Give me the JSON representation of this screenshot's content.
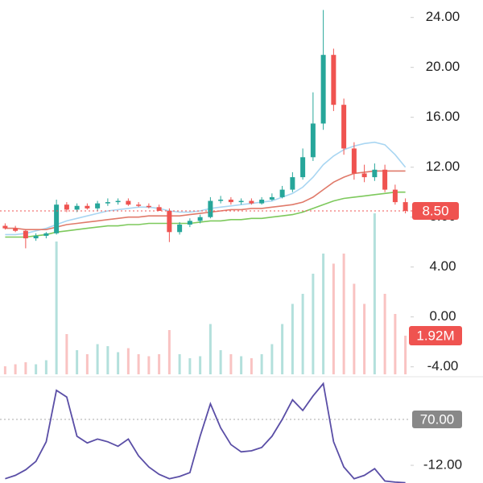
{
  "chart_data": {
    "type": "candlestick",
    "ylim": [
      -4.6,
      25.4
    ],
    "yticks": [
      {
        "value": 24,
        "label": "24.00"
      },
      {
        "value": 20,
        "label": "20.00"
      },
      {
        "value": 16,
        "label": "16.00"
      },
      {
        "value": 12,
        "label": "12.00"
      },
      {
        "value": 8,
        "label": "8.00"
      },
      {
        "value": 4,
        "label": "4.00"
      },
      {
        "value": 0,
        "label": "0.00"
      },
      {
        "value": -4,
        "label": "-4.00"
      }
    ],
    "colors": {
      "up": "#26a69a",
      "down": "#ef5350"
    },
    "open": [
      7.3,
      7.1,
      6.9,
      6.3,
      6.5,
      6.7,
      9.0,
      8.6,
      8.9,
      8.7,
      9.1,
      9.2,
      9.3,
      9.0,
      8.9,
      8.8,
      8.5,
      6.8,
      7.4,
      7.7,
      8.0,
      9.3,
      9.4,
      9.2,
      9.3,
      9.1,
      9.4,
      9.6,
      10.2,
      11.2,
      12.8,
      15.5,
      21.0,
      17.0,
      13.5,
      11.5,
      11.2,
      11.8,
      10.2,
      9.2
    ],
    "high": [
      7.5,
      7.3,
      7.0,
      6.7,
      6.8,
      9.4,
      9.2,
      9.1,
      9.1,
      9.3,
      9.5,
      9.5,
      9.5,
      9.2,
      9.1,
      9.0,
      8.7,
      7.6,
      7.9,
      8.2,
      9.6,
      9.7,
      9.6,
      9.5,
      9.5,
      9.6,
      9.9,
      10.5,
      11.6,
      13.5,
      18.0,
      24.6,
      21.5,
      17.5,
      14.0,
      12.2,
      12.3,
      12.2,
      10.6,
      9.5
    ],
    "low": [
      7.0,
      6.8,
      5.5,
      6.1,
      6.3,
      6.6,
      8.4,
      8.4,
      8.6,
      8.5,
      8.9,
      9.0,
      8.9,
      8.8,
      8.7,
      8.5,
      6.0,
      6.6,
      7.2,
      7.5,
      7.9,
      9.1,
      9.0,
      9.0,
      9.0,
      9.0,
      9.3,
      9.5,
      10.0,
      11.0,
      12.5,
      15.0,
      16.5,
      13.0,
      11.0,
      10.8,
      10.9,
      10.0,
      9.0,
      8.3
    ],
    "close": [
      7.1,
      6.9,
      6.3,
      6.5,
      6.7,
      9.0,
      8.6,
      8.9,
      8.7,
      9.1,
      9.2,
      9.3,
      9.0,
      8.9,
      8.8,
      8.5,
      6.8,
      7.4,
      7.7,
      8.0,
      9.3,
      9.4,
      9.2,
      9.3,
      9.1,
      9.4,
      9.6,
      10.2,
      11.2,
      12.8,
      15.5,
      21.0,
      17.0,
      13.5,
      11.5,
      11.2,
      11.8,
      10.2,
      9.2,
      8.5
    ],
    "close_label": "8.50",
    "moving_averages": [
      {
        "color": "#a9d6f2",
        "values": [
          6.6,
          6.6,
          6.7,
          6.9,
          7.1,
          7.4,
          7.7,
          7.9,
          8.1,
          8.3,
          8.5,
          8.6,
          8.7,
          8.8,
          8.8,
          8.7,
          8.5,
          8.4,
          8.4,
          8.5,
          8.7,
          8.8,
          8.9,
          9.0,
          9.1,
          9.2,
          9.3,
          9.6,
          9.9,
          10.4,
          11.2,
          12.2,
          12.9,
          13.4,
          13.7,
          13.9,
          14.0,
          13.8,
          13.0,
          12.0
        ]
      },
      {
        "color": "#e07a6a",
        "values": [
          7.1,
          7.1,
          7.0,
          7.0,
          7.0,
          7.2,
          7.4,
          7.5,
          7.6,
          7.7,
          7.8,
          7.9,
          8.0,
          8.0,
          8.1,
          8.1,
          8.1,
          8.1,
          8.2,
          8.3,
          8.4,
          8.5,
          8.6,
          8.6,
          8.7,
          8.7,
          8.8,
          8.9,
          9.0,
          9.2,
          9.6,
          10.2,
          10.8,
          11.2,
          11.5,
          11.6,
          11.7,
          11.7,
          11.7,
          11.7
        ]
      },
      {
        "color": "#7dc95c",
        "values": [
          6.4,
          6.4,
          6.4,
          6.5,
          6.6,
          6.8,
          6.9,
          7.0,
          7.1,
          7.2,
          7.3,
          7.3,
          7.4,
          7.4,
          7.5,
          7.5,
          7.5,
          7.5,
          7.5,
          7.6,
          7.7,
          7.7,
          7.8,
          7.8,
          7.9,
          7.9,
          8.0,
          8.1,
          8.2,
          8.4,
          8.7,
          9.0,
          9.3,
          9.5,
          9.6,
          9.7,
          9.8,
          9.9,
          10.0,
          10.0
        ]
      }
    ],
    "volume": {
      "ylim": [
        0,
        18.6
      ],
      "values": [
        0.4,
        0.5,
        0.6,
        0.5,
        0.7,
        6.6,
        2.0,
        1.2,
        1.0,
        1.5,
        1.4,
        1.1,
        1.3,
        1.0,
        0.9,
        1.0,
        2.2,
        1.0,
        0.8,
        0.9,
        2.5,
        1.2,
        1.0,
        0.9,
        0.8,
        1.0,
        1.5,
        2.5,
        3.5,
        4.0,
        5.0,
        6.0,
        5.5,
        6.0,
        4.5,
        3.5,
        8.0,
        4.0,
        3.0,
        1.92
      ],
      "last_label": "1.92M"
    },
    "rsi": {
      "color": "#5a4ea6",
      "ylim": [
        -43.6,
        143.4
      ],
      "yticks": [
        {
          "value": 70,
          "label": "70.00"
        },
        {
          "value": -12,
          "label": "-12.00"
        }
      ],
      "values": [
        -36,
        -30,
        -20,
        -5,
        30,
        122,
        110,
        40,
        28,
        35,
        30,
        22,
        35,
        5,
        -15,
        -28,
        -36,
        -32,
        -25,
        40,
        98,
        55,
        25,
        12,
        14,
        20,
        40,
        70,
        105,
        86,
        112,
        134,
        30,
        -15,
        -36,
        -30,
        -18,
        -40,
        -42,
        -43
      ]
    }
  }
}
